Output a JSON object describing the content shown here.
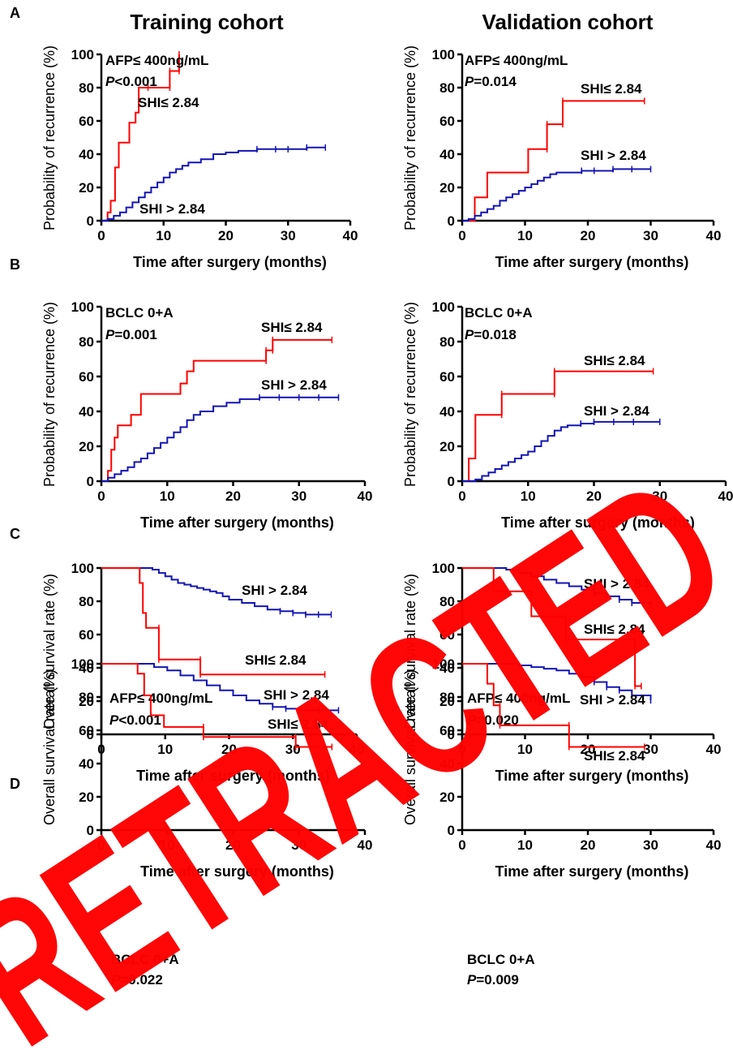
{
  "figure": {
    "column_titles": [
      "Training cohort",
      "Validation cohort"
    ],
    "row_labels": [
      "A",
      "B",
      "C",
      "D"
    ],
    "watermark": "RETRACTED",
    "colors": {
      "low_shi": "#ff0000",
      "high_shi": "#1414b4",
      "watermark": "#ff0000"
    }
  },
  "chart_data": [
    {
      "type": "line",
      "panel": "A",
      "cohort": "Training cohort",
      "xlabel": "Time after surgery (months)",
      "ylabel": "Probability of recurrence (%)",
      "xlim": [
        0,
        40
      ],
      "ylim": [
        0,
        100
      ],
      "xticks": [
        0,
        10,
        20,
        30,
        40
      ],
      "yticks": [
        0,
        20,
        40,
        60,
        80,
        100
      ],
      "subgroup": "AFP≤ 400ng/mL",
      "p_value": "P<0.001",
      "series": [
        {
          "name": "SHI≤ 2.84",
          "color": "#ff0000",
          "x": [
            0,
            1,
            1,
            1.5,
            1.5,
            2.2,
            2.2,
            2.8,
            2.8,
            4.5,
            4.5,
            5.5,
            5.5,
            6,
            6,
            7.5,
            7.5,
            11,
            11,
            12.5,
            12.5
          ],
          "y": [
            0,
            0,
            5,
            5,
            12,
            12,
            32,
            32,
            47,
            47,
            59,
            59,
            65,
            65,
            80,
            80,
            80,
            80,
            90,
            90,
            100
          ]
        },
        {
          "name": "SHI > 2.84",
          "color": "#1414b4",
          "x": [
            0,
            1,
            2,
            3,
            4,
            5,
            6,
            7,
            8,
            9,
            10,
            11,
            12,
            13,
            14,
            16,
            18,
            20,
            22,
            25,
            28,
            30,
            33,
            36
          ],
          "y": [
            0,
            1,
            3,
            5,
            8,
            11,
            14,
            17,
            20,
            23,
            26,
            29,
            31,
            33,
            35,
            37,
            40,
            41,
            42,
            43,
            43,
            43,
            44,
            44
          ]
        }
      ]
    },
    {
      "type": "line",
      "panel": "A",
      "cohort": "Validation cohort",
      "xlabel": "Time after surgery (months)",
      "ylabel": "Probability of recurrence (%)",
      "xlim": [
        0,
        40
      ],
      "ylim": [
        0,
        100
      ],
      "xticks": [
        0,
        10,
        20,
        30,
        40
      ],
      "yticks": [
        0,
        20,
        40,
        60,
        80,
        100
      ],
      "subgroup": "AFP≤ 400ng/mL",
      "p_value": "P=0.014",
      "series": [
        {
          "name": "SHI≤ 2.84",
          "color": "#ff0000",
          "x": [
            0,
            2,
            2,
            4,
            4,
            10.5,
            10.5,
            13.5,
            13.5,
            16,
            16,
            29
          ],
          "y": [
            0,
            0,
            14,
            14,
            29,
            29,
            43,
            43,
            58,
            58,
            72,
            72
          ]
        },
        {
          "name": "SHI > 2.84",
          "color": "#1414b4",
          "x": [
            0,
            1,
            2,
            3,
            4,
            5,
            6,
            7,
            8,
            9,
            10,
            11,
            12,
            13,
            14,
            15,
            17,
            19,
            21,
            24,
            27,
            30
          ],
          "y": [
            0,
            1,
            3,
            5,
            7,
            9,
            12,
            14,
            16,
            18,
            20,
            22,
            24,
            26,
            28,
            29,
            29,
            30,
            30,
            31,
            31,
            31
          ]
        }
      ]
    },
    {
      "type": "line",
      "panel": "B",
      "cohort": "Training cohort",
      "xlabel": "Time after surgery (months)",
      "ylabel": "Probability of recurrence (%)",
      "xlim": [
        0,
        40
      ],
      "ylim": [
        0,
        100
      ],
      "xticks": [
        0,
        10,
        20,
        30,
        40
      ],
      "yticks": [
        0,
        20,
        40,
        60,
        80,
        100
      ],
      "subgroup": "BCLC 0+A",
      "p_value": "P=0.001",
      "series": [
        {
          "name": "SHI≤ 2.84",
          "color": "#ff0000",
          "x": [
            0,
            1,
            1,
            1.5,
            1.5,
            2,
            2,
            2.5,
            2.5,
            4.5,
            4.5,
            6,
            6,
            12,
            12,
            13,
            13,
            14,
            14,
            25,
            25,
            26,
            26,
            35
          ],
          "y": [
            0,
            0,
            6,
            6,
            18,
            18,
            25,
            25,
            32,
            32,
            38,
            38,
            50,
            50,
            56,
            56,
            63,
            63,
            69,
            69,
            75,
            75,
            81,
            81
          ]
        },
        {
          "name": "SHI > 2.84",
          "color": "#1414b4",
          "x": [
            0,
            1,
            2,
            3,
            4,
            5,
            6,
            7,
            8,
            9,
            10,
            11,
            12,
            13,
            14,
            15,
            17,
            19,
            21,
            24,
            27,
            30,
            33,
            36
          ],
          "y": [
            0,
            2,
            4,
            6,
            8,
            11,
            13,
            16,
            19,
            22,
            25,
            28,
            31,
            35,
            38,
            40,
            43,
            45,
            47,
            48,
            48,
            48,
            48,
            48
          ]
        }
      ]
    },
    {
      "type": "line",
      "panel": "B",
      "cohort": "Validation cohort",
      "xlabel": "Time after surgery (months)",
      "ylabel": "Probability of recurrence (%)",
      "xlim": [
        0,
        40
      ],
      "ylim": [
        0,
        100
      ],
      "xticks": [
        0,
        10,
        20,
        30,
        40
      ],
      "yticks": [
        0,
        20,
        40,
        60,
        80,
        100
      ],
      "subgroup": "BCLC 0+A",
      "p_value": "P=0.018",
      "series": [
        {
          "name": "SHI≤ 2.84",
          "color": "#ff0000",
          "x": [
            0,
            1,
            1,
            2,
            2,
            6,
            6,
            14,
            14,
            29
          ],
          "y": [
            0,
            0,
            13,
            13,
            38,
            38,
            50,
            50,
            63,
            63
          ]
        },
        {
          "name": "SHI > 2.84",
          "color": "#1414b4",
          "x": [
            0,
            2,
            3,
            4,
            5,
            6,
            7,
            8,
            9,
            10,
            11,
            12,
            13,
            14,
            15,
            16,
            18,
            20,
            23,
            26,
            30
          ],
          "y": [
            0,
            1,
            3,
            5,
            7,
            9,
            11,
            13,
            15,
            17,
            20,
            23,
            26,
            29,
            31,
            32,
            33,
            34,
            34,
            34,
            34
          ]
        }
      ]
    },
    {
      "type": "line",
      "panel": "C",
      "cohort": "Training cohort",
      "xlabel": "Time after surgery (months)",
      "ylabel": "Overall survival rate (%)",
      "xlim": [
        0,
        40
      ],
      "ylim": [
        0,
        100
      ],
      "xticks": [
        0,
        10,
        20,
        30,
        40
      ],
      "yticks": [
        0,
        20,
        40,
        60,
        80,
        100
      ],
      "subgroup": "AFP≤ 400ng/mL",
      "p_value": "P<0.001",
      "series": [
        {
          "name": "SHI > 2.84",
          "color": "#1414b4",
          "x": [
            0,
            6,
            8,
            9,
            10,
            11,
            12,
            13,
            14,
            15,
            16,
            17,
            18,
            19,
            20,
            22,
            24,
            26,
            28,
            30,
            32,
            34,
            36
          ],
          "y": [
            100,
            100,
            99,
            97,
            95,
            93,
            91,
            90,
            89,
            88,
            87,
            86,
            85,
            83,
            81,
            79,
            77,
            75,
            74,
            73,
            72,
            72,
            72
          ]
        },
        {
          "name": "SHI≤ 2.84",
          "color": "#ff0000",
          "x": [
            0,
            6,
            6,
            6.5,
            6.5,
            7,
            7,
            9,
            9,
            15.5,
            15.5,
            35
          ],
          "y": [
            100,
            100,
            91,
            91,
            73,
            73,
            64,
            64,
            45,
            45,
            36,
            36
          ]
        }
      ]
    },
    {
      "type": "line",
      "panel": "C",
      "cohort": "Validation cohort",
      "xlabel": "Time after surgery (months)",
      "ylabel": "Overall survival rate (%)",
      "xlim": [
        0,
        40
      ],
      "ylim": [
        0,
        100
      ],
      "xticks": [
        0,
        10,
        20,
        30,
        40
      ],
      "yticks": [
        0,
        20,
        40,
        60,
        80,
        100
      ],
      "subgroup": "AFP≤ 400ng/mL",
      "p_value": "P=0.020",
      "series": [
        {
          "name": "SHI > 2.84",
          "color": "#1414b4",
          "x": [
            0,
            5,
            7,
            9,
            11,
            13,
            15,
            17,
            19,
            21,
            23,
            25,
            27,
            30
          ],
          "y": [
            100,
            100,
            99,
            97,
            95,
            93,
            91,
            89,
            87,
            85,
            83,
            81,
            79,
            78
          ]
        },
        {
          "name": "SHI≤ 2.84",
          "color": "#ff0000",
          "x": [
            0,
            5,
            5,
            11,
            11,
            16.5,
            16.5,
            27.5,
            27.5,
            28.5
          ],
          "y": [
            100,
            100,
            86,
            86,
            71,
            71,
            57,
            57,
            29,
            29
          ]
        }
      ]
    },
    {
      "type": "line",
      "panel": "D",
      "cohort": "Training cohort",
      "xlabel": "Time after surgery (months)",
      "ylabel": "Overall survival rate (%)",
      "xlim": [
        0,
        40
      ],
      "ylim": [
        0,
        100
      ],
      "xticks": [
        0,
        10,
        20,
        30,
        40
      ],
      "yticks": [
        0,
        20,
        40,
        60,
        80,
        100
      ],
      "subgroup": "BCLC 0+A",
      "p_value": "P=0.022",
      "series": [
        {
          "name": "SHI > 2.84",
          "color": "#1414b4",
          "x": [
            0,
            6,
            8,
            10,
            12,
            14,
            16,
            18,
            20,
            22,
            24,
            26,
            28,
            30,
            33,
            36
          ],
          "y": [
            100,
            100,
            98,
            96,
            93,
            90,
            87,
            84,
            81,
            78,
            76,
            74,
            73,
            72,
            72,
            72
          ]
        },
        {
          "name": "SHI≤ 2.84",
          "color": "#ff0000",
          "x": [
            0,
            5.5,
            5.5,
            6.5,
            6.5,
            7.5,
            7.5,
            9.5,
            9.5,
            15.5,
            15.5,
            29.5,
            29.5,
            35
          ],
          "y": [
            100,
            100,
            94,
            94,
            81,
            81,
            69,
            69,
            62,
            62,
            56,
            56,
            50,
            50
          ]
        }
      ]
    },
    {
      "type": "line",
      "panel": "D",
      "cohort": "Validation cohort",
      "xlabel": "Time after surgery (months)",
      "ylabel": "Overall survival rate (%)",
      "xlim": [
        0,
        40
      ],
      "ylim": [
        0,
        100
      ],
      "xticks": [
        0,
        10,
        20,
        30,
        40
      ],
      "yticks": [
        0,
        20,
        40,
        60,
        80,
        100
      ],
      "subgroup": "BCLC 0+A",
      "p_value": "P=0.009",
      "series": [
        {
          "name": "SHI > 2.84",
          "color": "#1414b4",
          "x": [
            0,
            7,
            9,
            11,
            13,
            15,
            17,
            19,
            21,
            23,
            25,
            27,
            30
          ],
          "y": [
            100,
            100,
            99,
            98,
            97,
            96,
            94,
            92,
            89,
            86,
            84,
            81,
            78
          ]
        },
        {
          "name": "SHI≤ 2.84",
          "color": "#ff0000",
          "x": [
            0,
            4,
            4,
            5,
            5,
            6,
            6,
            17,
            17,
            29
          ],
          "y": [
            100,
            100,
            88,
            88,
            75,
            75,
            63,
            63,
            50,
            50
          ]
        }
      ]
    }
  ]
}
